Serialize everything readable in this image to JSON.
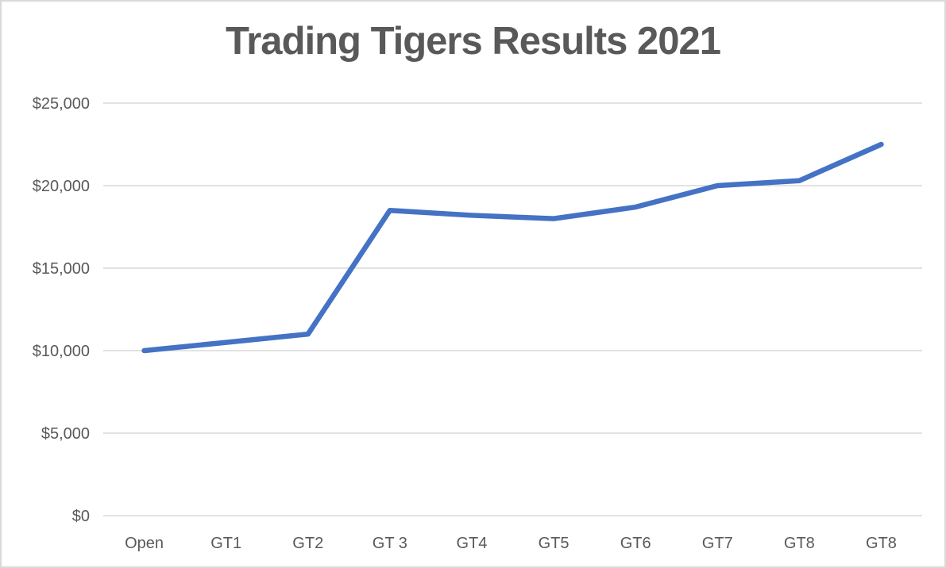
{
  "chart_data": {
    "type": "line",
    "title": "Trading Tigers Results 2021",
    "categories": [
      "Open",
      "GT1",
      "GT2",
      "GT 3",
      "GT4",
      "GT5",
      "GT6",
      "GT7",
      "GT8",
      "GT8"
    ],
    "values": [
      10000,
      10500,
      11000,
      18500,
      18200,
      18000,
      18700,
      20000,
      20300,
      22500
    ],
    "ylim": [
      0,
      25000
    ],
    "ytick_step": 5000,
    "ytick_labels": [
      "$0",
      "$5,000",
      "$10,000",
      "$15,000",
      "$20,000",
      "$25,000"
    ],
    "xlabel": "",
    "ylabel": "",
    "grid": true,
    "legend": "none",
    "colors": {
      "line": "#4472C4",
      "gridline": "#D9D9D9",
      "text": "#595959",
      "frame_border": "#D9D9D9",
      "background": "#FFFFFF"
    }
  }
}
